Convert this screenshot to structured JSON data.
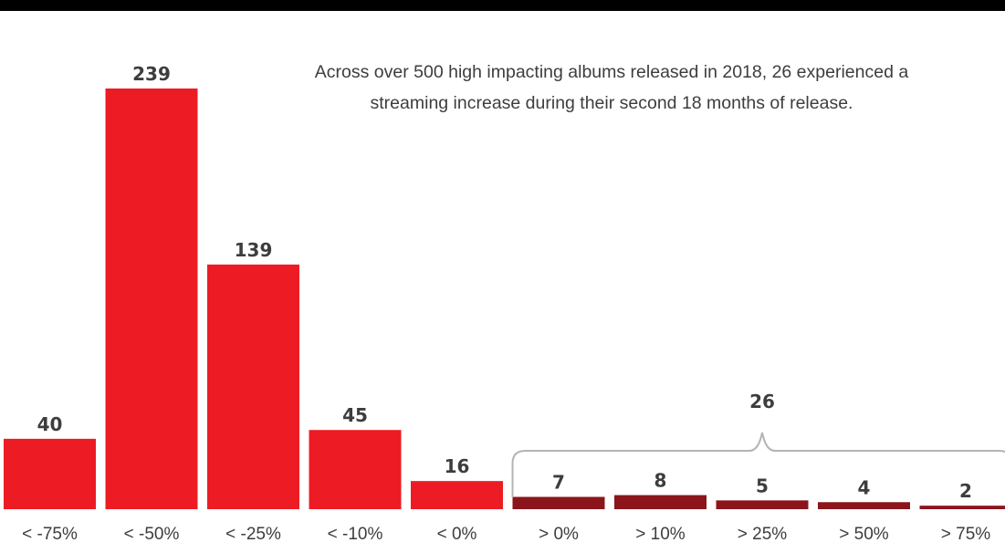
{
  "annotation": "Across over 500 high impacting albums released in 2018, 26 experienced a streaming increase during their second 18 months of release.",
  "chart_data": {
    "type": "bar",
    "title": "",
    "xlabel": "",
    "ylabel": "",
    "categories": [
      "< -75%",
      "< -50%",
      "< -25%",
      "< -10%",
      "< 0%",
      "> 0%",
      "> 10%",
      "> 25%",
      "> 50%",
      "> 75%"
    ],
    "values": [
      40,
      239,
      139,
      45,
      16,
      7,
      8,
      5,
      4,
      2
    ],
    "data_labels": [
      "40",
      "239",
      "139",
      "45",
      "16",
      "7",
      "8",
      "5",
      "4",
      "2"
    ],
    "ylim": [
      0,
      239
    ],
    "grid": false,
    "legend": "none",
    "colors": {
      "decrease": "#ed1c24",
      "increase": "#8b151b",
      "label_text": "#3d3d3d",
      "bracket": "#b4b4b4",
      "top_bar": "#000000"
    },
    "bracket": {
      "label": "26",
      "from_category": "> 0%",
      "to_category": "> 75%"
    }
  }
}
